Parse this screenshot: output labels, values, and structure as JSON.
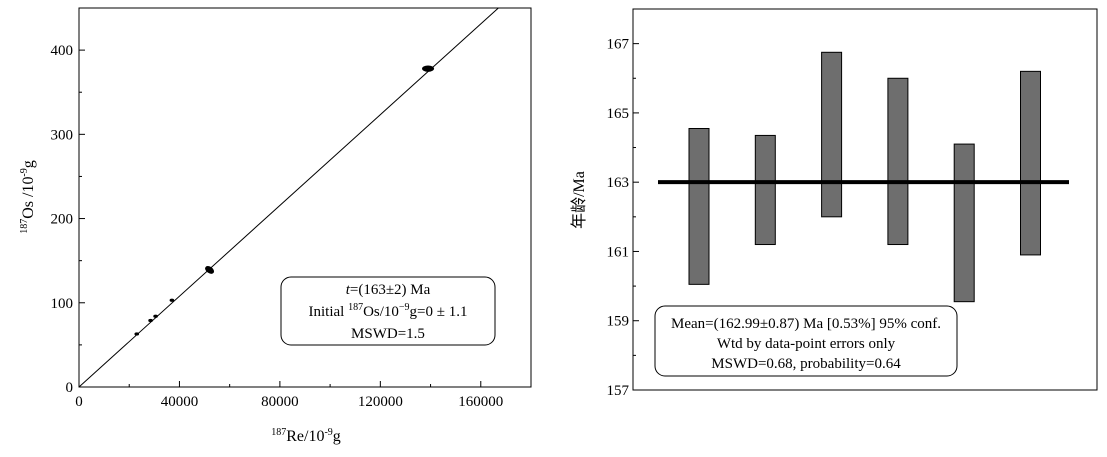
{
  "chart_data": [
    {
      "type": "scatter",
      "xlabel": {
        "sup": "187",
        "main": "Re/10",
        "exp": "-9",
        "tail": "g"
      },
      "ylabel": {
        "sup": "187",
        "main": "Os /10",
        "exp": "-9",
        "tail": "g"
      },
      "xlim": [
        0,
        180000
      ],
      "ylim": [
        0,
        450
      ],
      "xticks": [
        "0",
        "40000",
        "80000",
        "120000",
        "160000"
      ],
      "yticks": [
        "0",
        "100",
        "200",
        "300",
        "400"
      ],
      "xtick_values": [
        0,
        40000,
        80000,
        120000,
        160000
      ],
      "ytick_values": [
        0,
        100,
        200,
        300,
        400
      ],
      "points": [
        {
          "x": 23000,
          "y": 63
        },
        {
          "x": 28500,
          "y": 79
        },
        {
          "x": 30500,
          "y": 84
        },
        {
          "x": 37000,
          "y": 103
        },
        {
          "x": 52000,
          "y": 139
        },
        {
          "x": 139000,
          "y": 378
        }
      ],
      "isochron": {
        "x0": 0,
        "y0": 0,
        "x1": 180000,
        "y1": 485
      },
      "legend_box": {
        "line1_italic": "t",
        "line1_rest": "=(163±2) Ma",
        "line2_pre": "Initial ",
        "line2_sup": "187",
        "line2_mid": "Os/10",
        "line2_exp": "−9",
        "line2_post": "g=0 ± 1.1",
        "line3": "MSWD=1.5"
      }
    },
    {
      "type": "bar",
      "ylabel": "年龄/Ma",
      "ylim": [
        157,
        168
      ],
      "yticks": [
        "157",
        "159",
        "161",
        "163",
        "165",
        "167"
      ],
      "ytick_values": [
        157,
        159,
        161,
        163,
        165,
        167
      ],
      "mean_line": 163,
      "bars": [
        {
          "low": 160.05,
          "high": 164.55
        },
        {
          "low": 161.2,
          "high": 164.35
        },
        {
          "low": 162.0,
          "high": 166.75
        },
        {
          "low": 161.2,
          "high": 166.0
        },
        {
          "low": 159.55,
          "high": 164.1
        },
        {
          "low": 160.9,
          "high": 166.2
        }
      ],
      "bar_color": "#6e6e6e",
      "legend_box": {
        "line1": "Mean=(162.99±0.87)  Ma [0.53%] 95% conf.",
        "line2": "Wtd by data-point errors only",
        "line3": "MSWD=0.68, probability=0.64"
      }
    }
  ]
}
